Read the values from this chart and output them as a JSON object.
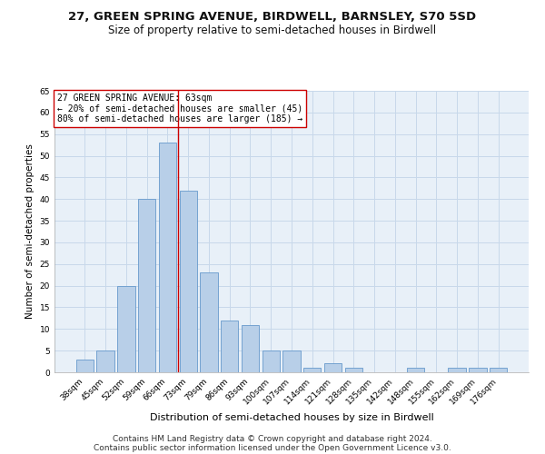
{
  "title": "27, GREEN SPRING AVENUE, BIRDWELL, BARNSLEY, S70 5SD",
  "subtitle": "Size of property relative to semi-detached houses in Birdwell",
  "xlabel": "Distribution of semi-detached houses by size in Birdwell",
  "ylabel": "Number of semi-detached properties",
  "categories": [
    "38sqm",
    "45sqm",
    "52sqm",
    "59sqm",
    "66sqm",
    "73sqm",
    "79sqm",
    "86sqm",
    "93sqm",
    "100sqm",
    "107sqm",
    "114sqm",
    "121sqm",
    "128sqm",
    "135sqm",
    "142sqm",
    "148sqm",
    "155sqm",
    "162sqm",
    "169sqm",
    "176sqm"
  ],
  "values": [
    3,
    5,
    20,
    40,
    53,
    42,
    23,
    12,
    11,
    5,
    5,
    1,
    2,
    1,
    0,
    0,
    1,
    0,
    1,
    1,
    1
  ],
  "bar_color": "#b8cfe8",
  "bar_edge_color": "#6699cc",
  "red_line_x": 4.5,
  "annotation_line1": "27 GREEN SPRING AVENUE: 63sqm",
  "annotation_line2": "← 20% of semi-detached houses are smaller (45)",
  "annotation_line3": "80% of semi-detached houses are larger (185) →",
  "annotation_box_color": "#ffffff",
  "annotation_box_edge": "#cc0000",
  "red_line_color": "#cc0000",
  "ylim": [
    0,
    65
  ],
  "yticks": [
    0,
    5,
    10,
    15,
    20,
    25,
    30,
    35,
    40,
    45,
    50,
    55,
    60,
    65
  ],
  "footer1": "Contains HM Land Registry data © Crown copyright and database right 2024.",
  "footer2": "Contains public sector information licensed under the Open Government Licence v3.0.",
  "grid_color": "#c8d8ea",
  "bg_color": "#e8f0f8",
  "title_fontsize": 9.5,
  "subtitle_fontsize": 8.5,
  "xlabel_fontsize": 8,
  "ylabel_fontsize": 7.5,
  "tick_fontsize": 6.5,
  "annotation_fontsize": 7,
  "footer_fontsize": 6.5
}
